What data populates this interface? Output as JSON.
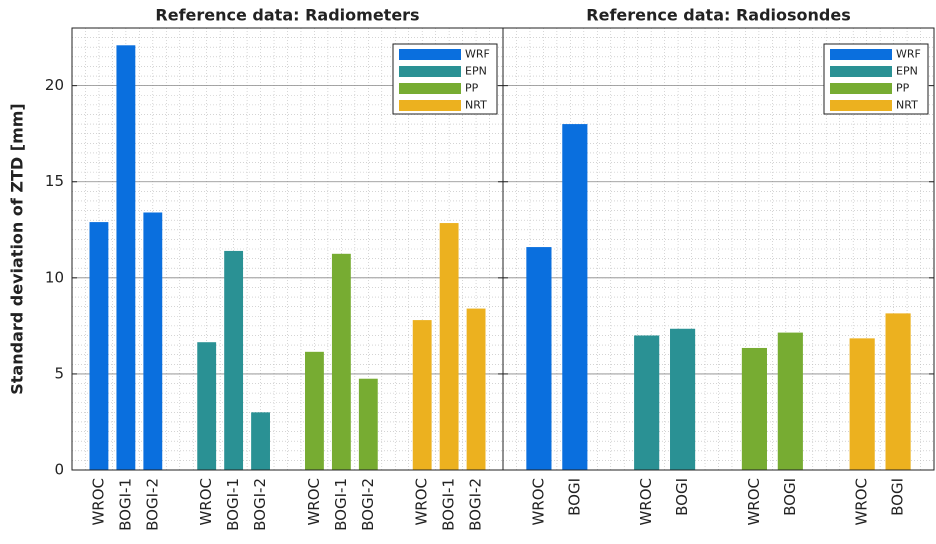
{
  "chart_data": [
    {
      "type": "bar",
      "title": "Reference data: Radiometers",
      "ylabel": "Standard deviation of ZTD [mm]",
      "ylim": [
        0,
        23
      ],
      "yticks": [
        0,
        5,
        10,
        15,
        20
      ],
      "grid": true,
      "legend": "upper right",
      "series": [
        {
          "name": "WRF",
          "color": "#0a6fde",
          "categories": [
            "WROC",
            "BOGI-1",
            "BOGI-2"
          ],
          "values": [
            12.9,
            22.1,
            13.4
          ]
        },
        {
          "name": "EPN",
          "color": "#2a9194",
          "categories": [
            "WROC",
            "BOGI-1",
            "BOGI-2"
          ],
          "values": [
            6.65,
            11.4,
            3.0
          ]
        },
        {
          "name": "PP",
          "color": "#77ac32",
          "categories": [
            "WROC",
            "BOGI-1",
            "BOGI-2"
          ],
          "values": [
            6.15,
            11.25,
            4.75
          ]
        },
        {
          "name": "NRT",
          "color": "#ecb11f",
          "categories": [
            "WROC",
            "BOGI-1",
            "BOGI-2"
          ],
          "values": [
            7.8,
            12.85,
            8.4
          ]
        }
      ]
    },
    {
      "type": "bar",
      "title": "Reference data: Radiosondes",
      "grid": true,
      "legend": "upper right",
      "series": [
        {
          "name": "WRF",
          "color": "#0a6fde",
          "categories": [
            "WROC",
            "BOGI"
          ],
          "values": [
            11.6,
            18.0
          ]
        },
        {
          "name": "EPN",
          "color": "#2a9194",
          "categories": [
            "WROC",
            "BOGI"
          ],
          "values": [
            7.0,
            7.35
          ]
        },
        {
          "name": "PP",
          "color": "#77ac32",
          "categories": [
            "WROC",
            "BOGI"
          ],
          "values": [
            6.35,
            7.15
          ]
        },
        {
          "name": "NRT",
          "color": "#ecb11f",
          "categories": [
            "WROC",
            "BOGI"
          ],
          "values": [
            6.85,
            8.15
          ]
        }
      ]
    }
  ]
}
